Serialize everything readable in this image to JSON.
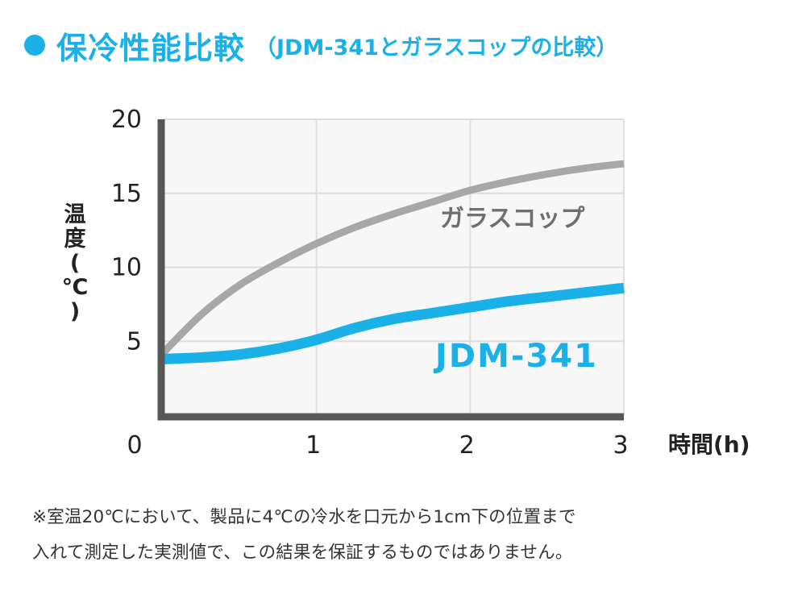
{
  "header": {
    "title": "保冷性能比較",
    "subtitle": "（JDM-341とガラスコップの比較）"
  },
  "colors": {
    "accent": "#1ab1e8",
    "glass": "#a8a8a8",
    "axis": "#575757",
    "grid": "#dedede",
    "plot_bg": "#f7f7f7",
    "label_glass": "#6f6f6f",
    "text": "#222222"
  },
  "chart_data": {
    "type": "line",
    "xlabel": "時間(h)",
    "ylabel": "温度(℃)",
    "xlim": [
      0,
      3
    ],
    "ylim": [
      0,
      20
    ],
    "x_ticks": [
      "0",
      "1",
      "2",
      "3"
    ],
    "y_ticks": [
      "5",
      "10",
      "15",
      "20"
    ],
    "grid": true,
    "series": [
      {
        "name": "ガラスコップ",
        "x": [
          0,
          0.25,
          0.5,
          0.75,
          1,
          1.25,
          1.5,
          1.75,
          2,
          2.25,
          2.5,
          2.75,
          3
        ],
        "y": [
          4.2,
          6.8,
          8.8,
          10.3,
          11.6,
          12.7,
          13.6,
          14.4,
          15.2,
          15.8,
          16.3,
          16.7,
          17.0
        ]
      },
      {
        "name": "JDM-341",
        "x": [
          0,
          0.25,
          0.5,
          0.75,
          1,
          1.25,
          1.5,
          1.75,
          2,
          2.25,
          2.5,
          2.75,
          3
        ],
        "y": [
          3.8,
          3.9,
          4.1,
          4.5,
          5.1,
          5.9,
          6.5,
          6.9,
          7.3,
          7.7,
          8.0,
          8.3,
          8.6
        ]
      }
    ]
  },
  "notes": {
    "line1": "※室温20℃において、製品に4℃の冷水を口元から1cm下の位置まで",
    "line2": "入れて測定した実測値で、この結果を保証するものではありません。"
  }
}
